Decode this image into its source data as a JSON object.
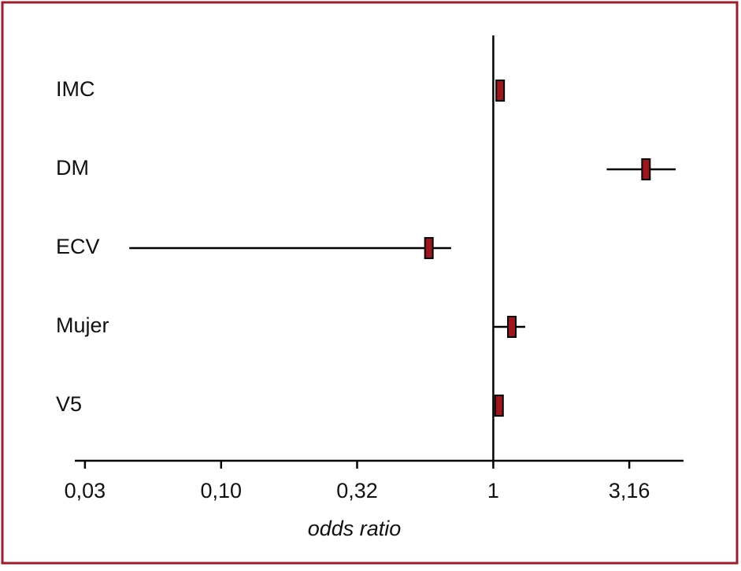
{
  "chart_data": {
    "type": "forest",
    "categories": [
      "IMC",
      "DM",
      "ECV",
      "Mujer",
      "V5"
    ],
    "values": [
      1.06,
      3.64,
      0.58,
      1.17,
      1.05
    ],
    "ci_low": [
      1.04,
      2.61,
      0.046,
      1.0,
      1.04
    ],
    "ci_high": [
      1.08,
      4.68,
      0.7,
      1.31,
      1.07
    ],
    "color": "#a0141e",
    "x_label": "odds ratio",
    "x_log": true,
    "xlim": [
      0.029,
      5.0
    ],
    "xticks": [
      {
        "value": 0.0316,
        "label": "0,03"
      },
      {
        "value": 0.1,
        "label": "0,10"
      },
      {
        "value": 0.316,
        "label": "0,32"
      },
      1,
      {
        "value": 3.16,
        "label": "3,16"
      }
    ],
    "reference_line": 1
  }
}
